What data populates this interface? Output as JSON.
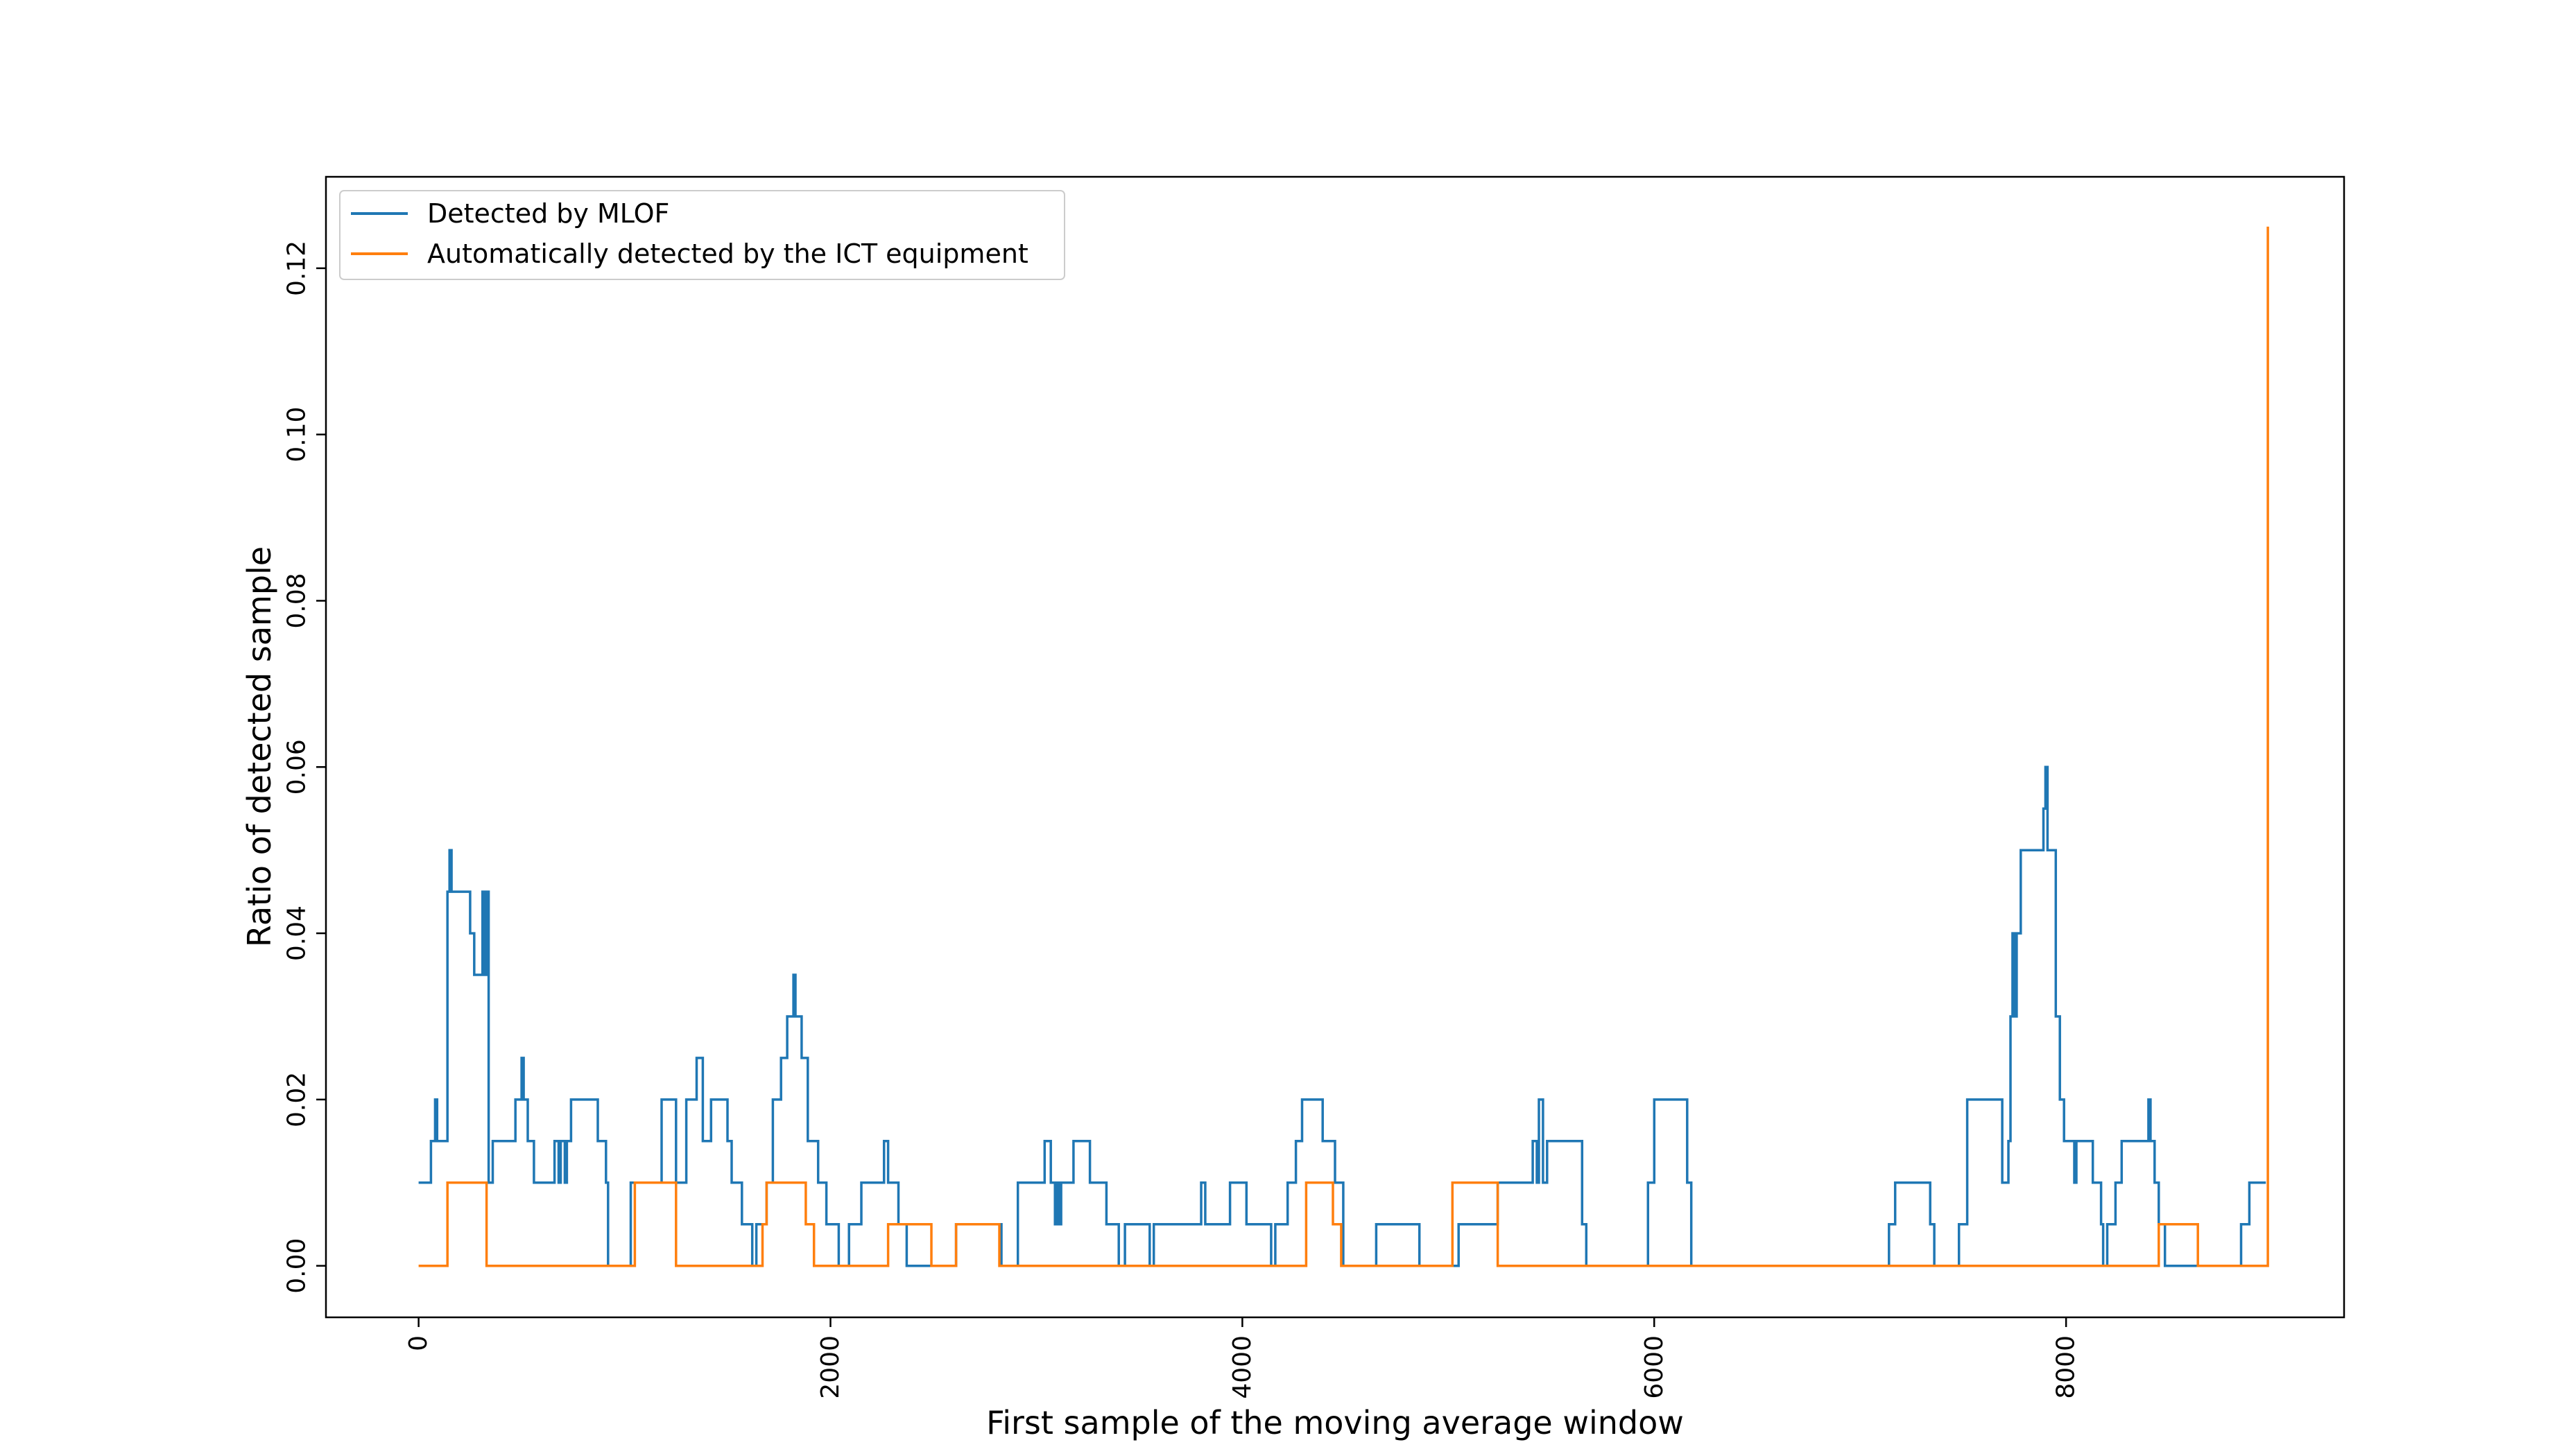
{
  "chart_data": {
    "type": "line",
    "xlabel": "First sample of the moving average window",
    "ylabel": "Ratio of detected sample",
    "xlim": [
      -450,
      9350
    ],
    "ylim": [
      -0.0062,
      0.131
    ],
    "xticks": [
      0,
      2000,
      4000,
      6000,
      8000
    ],
    "yticks": [
      0.0,
      0.02,
      0.04,
      0.06,
      0.08,
      0.1,
      0.12
    ],
    "xtick_labels": [
      "0",
      "2000",
      "4000",
      "6000",
      "8000"
    ],
    "ytick_labels": [
      "0.00",
      "0.02",
      "0.04",
      "0.06",
      "0.08",
      "0.10",
      "0.12"
    ],
    "grid": false,
    "legend_position": "top-left",
    "series": [
      {
        "name": "Detected by MLOF",
        "color": "#1f77b4",
        "step": true,
        "points": [
          [
            0,
            0.01
          ],
          [
            60,
            0.015
          ],
          [
            80,
            0.02
          ],
          [
            90,
            0.015
          ],
          [
            140,
            0.045
          ],
          [
            150,
            0.05
          ],
          [
            160,
            0.045
          ],
          [
            250,
            0.04
          ],
          [
            270,
            0.035
          ],
          [
            310,
            0.045
          ],
          [
            320,
            0.035
          ],
          [
            330,
            0.045
          ],
          [
            340,
            0.01
          ],
          [
            360,
            0.015
          ],
          [
            470,
            0.02
          ],
          [
            500,
            0.025
          ],
          [
            510,
            0.02
          ],
          [
            530,
            0.015
          ],
          [
            560,
            0.01
          ],
          [
            660,
            0.015
          ],
          [
            680,
            0.01
          ],
          [
            690,
            0.015
          ],
          [
            710,
            0.01
          ],
          [
            720,
            0.015
          ],
          [
            740,
            0.02
          ],
          [
            870,
            0.015
          ],
          [
            910,
            0.01
          ],
          [
            920,
            0.0
          ],
          [
            1030,
            0.01
          ],
          [
            1180,
            0.02
          ],
          [
            1250,
            0.01
          ],
          [
            1300,
            0.02
          ],
          [
            1350,
            0.025
          ],
          [
            1380,
            0.015
          ],
          [
            1420,
            0.02
          ],
          [
            1500,
            0.015
          ],
          [
            1520,
            0.01
          ],
          [
            1570,
            0.005
          ],
          [
            1620,
            0.0
          ],
          [
            1640,
            0.005
          ],
          [
            1690,
            0.01
          ],
          [
            1720,
            0.02
          ],
          [
            1760,
            0.025
          ],
          [
            1790,
            0.03
          ],
          [
            1820,
            0.035
          ],
          [
            1830,
            0.03
          ],
          [
            1860,
            0.025
          ],
          [
            1890,
            0.015
          ],
          [
            1940,
            0.01
          ],
          [
            1980,
            0.005
          ],
          [
            2040,
            0.0
          ],
          [
            2090,
            0.005
          ],
          [
            2150,
            0.01
          ],
          [
            2260,
            0.015
          ],
          [
            2280,
            0.01
          ],
          [
            2330,
            0.005
          ],
          [
            2370,
            0.0
          ],
          [
            2610,
            0.005
          ],
          [
            2830,
            0.0
          ],
          [
            2910,
            0.01
          ],
          [
            3040,
            0.015
          ],
          [
            3070,
            0.01
          ],
          [
            3090,
            0.005
          ],
          [
            3100,
            0.01
          ],
          [
            3110,
            0.005
          ],
          [
            3120,
            0.01
          ],
          [
            3180,
            0.015
          ],
          [
            3260,
            0.01
          ],
          [
            3340,
            0.005
          ],
          [
            3400,
            0.0
          ],
          [
            3430,
            0.005
          ],
          [
            3550,
            0.0
          ],
          [
            3570,
            0.005
          ],
          [
            3800,
            0.01
          ],
          [
            3820,
            0.005
          ],
          [
            3940,
            0.01
          ],
          [
            4020,
            0.005
          ],
          [
            4140,
            0.0
          ],
          [
            4160,
            0.005
          ],
          [
            4220,
            0.01
          ],
          [
            4260,
            0.015
          ],
          [
            4290,
            0.02
          ],
          [
            4390,
            0.015
          ],
          [
            4450,
            0.01
          ],
          [
            4490,
            0.0
          ],
          [
            4650,
            0.005
          ],
          [
            4860,
            0.0
          ],
          [
            5050,
            0.005
          ],
          [
            5240,
            0.01
          ],
          [
            5410,
            0.015
          ],
          [
            5430,
            0.01
          ],
          [
            5440,
            0.02
          ],
          [
            5460,
            0.01
          ],
          [
            5480,
            0.015
          ],
          [
            5650,
            0.005
          ],
          [
            5670,
            0.0
          ],
          [
            5970,
            0.01
          ],
          [
            6000,
            0.02
          ],
          [
            6160,
            0.01
          ],
          [
            6180,
            0.0
          ],
          [
            7140,
            0.005
          ],
          [
            7170,
            0.01
          ],
          [
            7340,
            0.005
          ],
          [
            7360,
            0.0
          ],
          [
            7480,
            0.005
          ],
          [
            7520,
            0.02
          ],
          [
            7690,
            0.01
          ],
          [
            7720,
            0.015
          ],
          [
            7730,
            0.03
          ],
          [
            7740,
            0.04
          ],
          [
            7750,
            0.03
          ],
          [
            7760,
            0.04
          ],
          [
            7780,
            0.05
          ],
          [
            7890,
            0.055
          ],
          [
            7900,
            0.06
          ],
          [
            7910,
            0.05
          ],
          [
            7950,
            0.03
          ],
          [
            7970,
            0.02
          ],
          [
            7990,
            0.015
          ],
          [
            8040,
            0.01
          ],
          [
            8050,
            0.015
          ],
          [
            8130,
            0.01
          ],
          [
            8170,
            0.005
          ],
          [
            8180,
            0.0
          ],
          [
            8200,
            0.005
          ],
          [
            8240,
            0.01
          ],
          [
            8270,
            0.015
          ],
          [
            8400,
            0.02
          ],
          [
            8410,
            0.015
          ],
          [
            8430,
            0.01
          ],
          [
            8450,
            0.005
          ],
          [
            8480,
            0.0
          ],
          [
            8850,
            0.005
          ],
          [
            8890,
            0.01
          ],
          [
            8970,
            0.01
          ]
        ]
      },
      {
        "name": "Automatically detected by the ICT equipment",
        "color": "#ff7f0e",
        "step": true,
        "points": [
          [
            0,
            0.0
          ],
          [
            140,
            0.01
          ],
          [
            330,
            0.0
          ],
          [
            1050,
            0.01
          ],
          [
            1250,
            0.0
          ],
          [
            1670,
            0.005
          ],
          [
            1690,
            0.01
          ],
          [
            1880,
            0.005
          ],
          [
            1920,
            0.0
          ],
          [
            2280,
            0.005
          ],
          [
            2490,
            0.0
          ],
          [
            2610,
            0.005
          ],
          [
            2820,
            0.0
          ],
          [
            4310,
            0.01
          ],
          [
            4440,
            0.005
          ],
          [
            4480,
            0.0
          ],
          [
            5020,
            0.01
          ],
          [
            5240,
            0.0
          ],
          [
            5970,
            0.0
          ],
          [
            8450,
            0.005
          ],
          [
            8640,
            0.0
          ],
          [
            8950,
            0.0
          ],
          [
            8980,
            0.125
          ]
        ]
      }
    ]
  }
}
